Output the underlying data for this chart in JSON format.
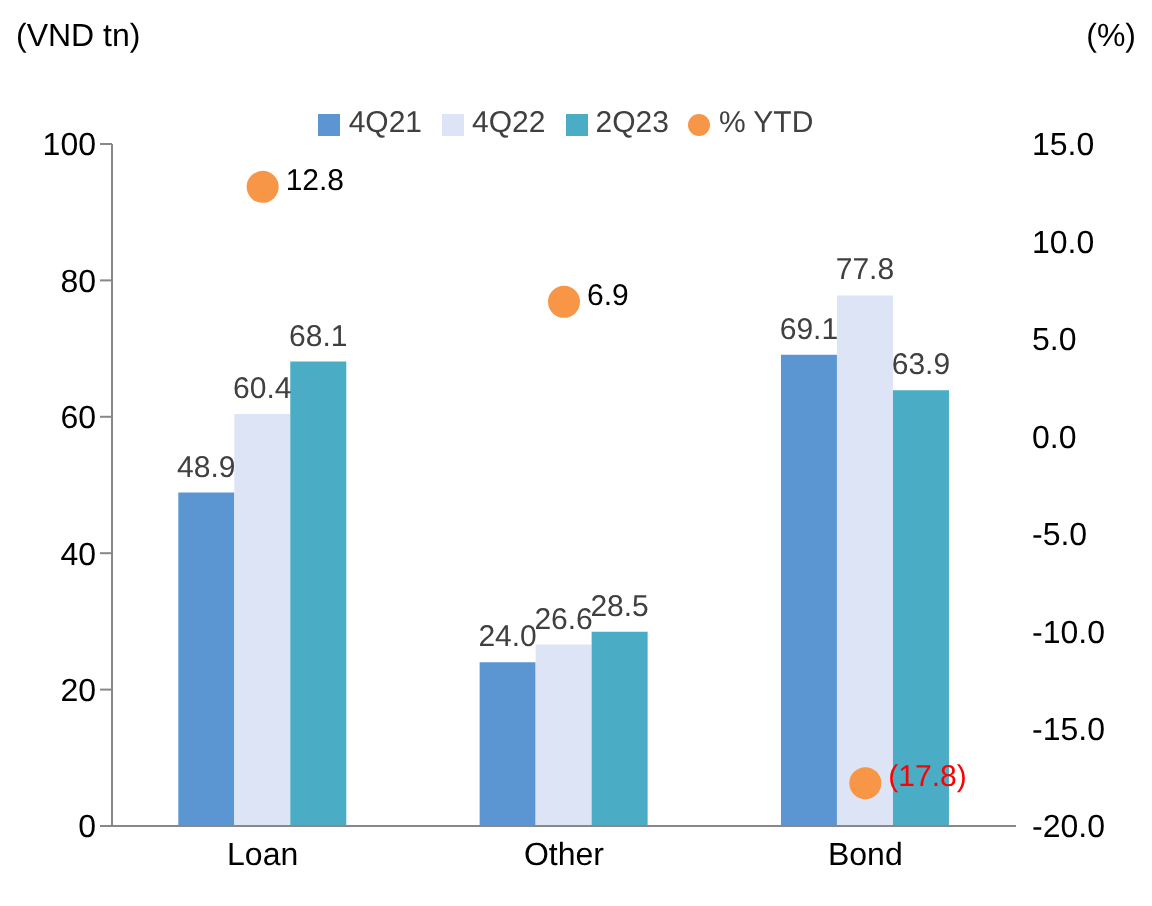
{
  "chart_data": {
    "type": "bar",
    "categories": [
      "Loan",
      "Other",
      "Bond"
    ],
    "ylabel": "(VND tn)",
    "y2label": "(%)",
    "ylim": [
      0,
      100
    ],
    "yticks": [
      0,
      20,
      40,
      60,
      80,
      100
    ],
    "y2lim": [
      -20,
      15
    ],
    "y2ticks": [
      {
        "value": -20,
        "label": "-20.0"
      },
      {
        "value": -15,
        "label": "-15.0"
      },
      {
        "value": -10,
        "label": "-10.0"
      },
      {
        "value": -5,
        "label": "-5.0"
      },
      {
        "value": 0,
        "label": "0.0"
      },
      {
        "value": 5,
        "label": "5.0"
      },
      {
        "value": 10,
        "label": "10.0"
      },
      {
        "value": 15,
        "label": "15.0"
      }
    ],
    "series": [
      {
        "name": "4Q21",
        "color": "#5b96d3",
        "values": [
          48.9,
          24.0,
          69.1
        ],
        "value_labels": [
          "48.9",
          "24.0",
          "69.1"
        ]
      },
      {
        "name": "4Q22",
        "color": "#dde4f6",
        "values": [
          60.4,
          26.6,
          77.8
        ],
        "value_labels": [
          "60.4",
          "26.6",
          "77.8"
        ]
      },
      {
        "name": "2Q23",
        "color": "#4aacc5",
        "values": [
          68.1,
          28.5,
          63.9
        ],
        "value_labels": [
          "68.1",
          "28.5",
          "63.9"
        ]
      },
      {
        "name": "% YTD",
        "type": "scatter",
        "axis": "y2",
        "color": "#f79646",
        "values": [
          12.8,
          6.9,
          -17.8
        ],
        "value_labels": [
          "12.8",
          "6.9",
          "(17.8)"
        ]
      }
    ],
    "legend": "top",
    "grid": false,
    "marker": "circle"
  }
}
